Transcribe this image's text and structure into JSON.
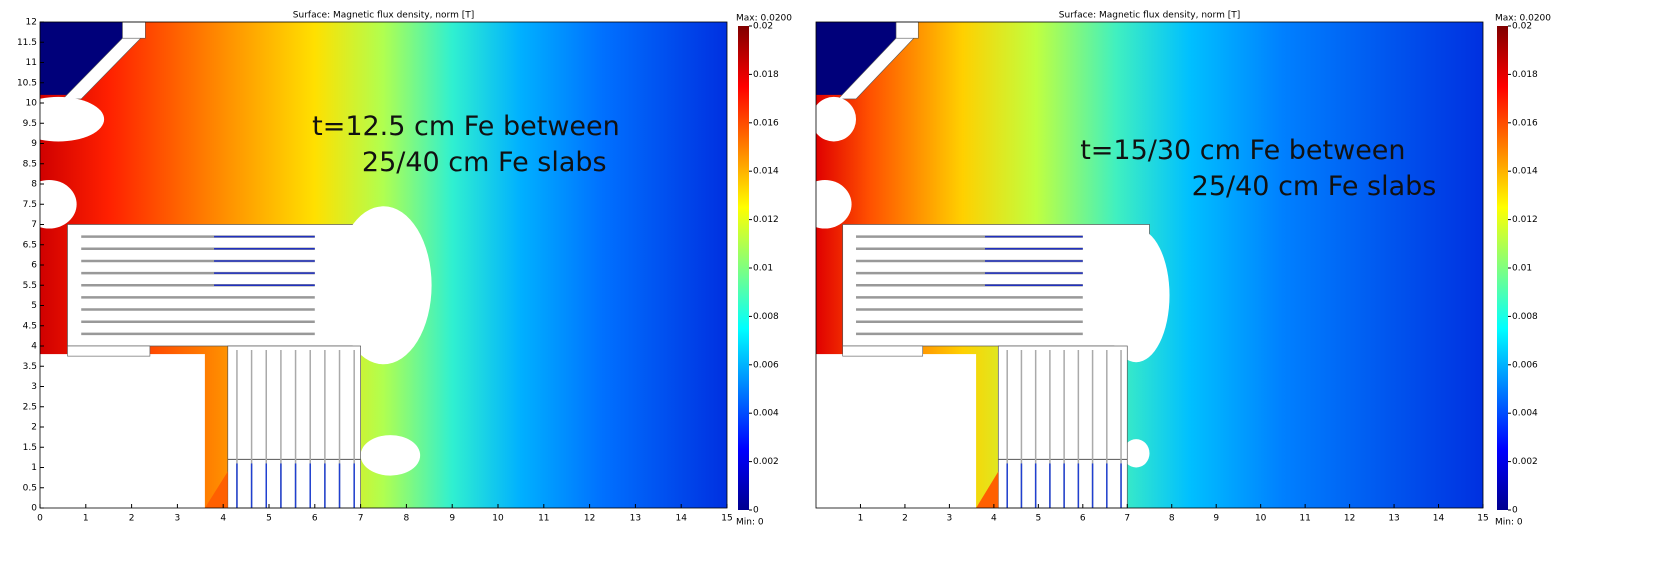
{
  "chart_data": [
    {
      "type": "surface",
      "title": "Surface: Magnetic flux density, norm [T]",
      "annotation": [
        "t=12.5 cm Fe between",
        "25/40 cm Fe slabs"
      ],
      "xlim": [
        0,
        15
      ],
      "xticks": [
        0,
        1,
        2,
        3,
        4,
        5,
        6,
        7,
        8,
        9,
        10,
        11,
        12,
        13,
        14,
        15
      ],
      "ylim": [
        0,
        12
      ],
      "yticks": [
        0,
        0.5,
        1,
        1.5,
        2,
        2.5,
        3,
        3.5,
        4,
        4.5,
        5,
        5.5,
        6,
        6.5,
        7,
        7.5,
        8,
        8.5,
        9,
        9.5,
        10,
        10.5,
        11,
        11.5,
        12
      ],
      "clim": [
        0,
        0.02
      ],
      "cticks": [
        0,
        0.002,
        0.004,
        0.006,
        0.008,
        0.01,
        0.012,
        0.014,
        0.016,
        0.018,
        0.02
      ],
      "max_label": "Max: 0.0200",
      "min_label": "Min: 0"
    },
    {
      "type": "surface",
      "title": "Surface: Magnetic flux density, norm [T]",
      "annotation": [
        "t=15/30 cm Fe between",
        "25/40 cm Fe slabs"
      ],
      "xlim": [
        0,
        15
      ],
      "xticks": [
        1,
        2,
        3,
        4,
        5,
        6,
        7,
        8,
        9,
        10,
        11,
        12,
        13,
        14,
        15
      ],
      "ylim": [
        0,
        12
      ],
      "clim": [
        0,
        0.02
      ],
      "cticks": [
        0,
        0.002,
        0.004,
        0.006,
        0.008,
        0.01,
        0.012,
        0.014,
        0.016,
        0.018,
        0.02
      ],
      "max_label": "Max: 0.0200",
      "min_label": "Min: 0"
    }
  ]
}
